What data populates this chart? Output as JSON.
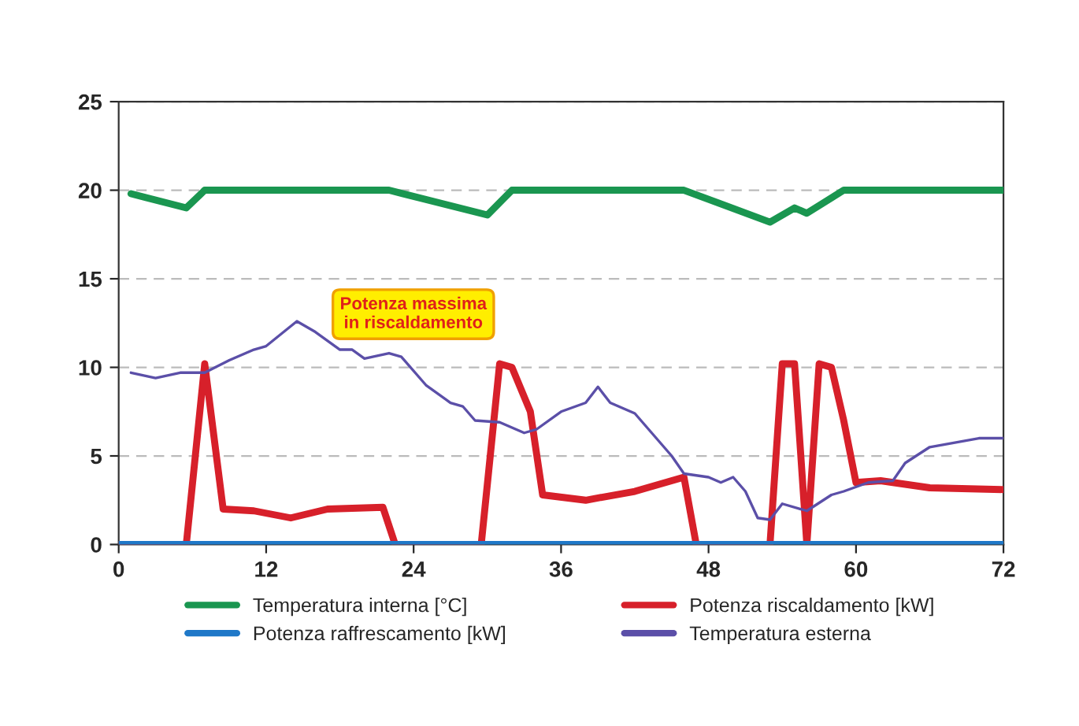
{
  "chart_data": {
    "type": "line",
    "xlim": [
      0,
      72
    ],
    "xticks": [
      0,
      12,
      24,
      36,
      48,
      60,
      72
    ],
    "ylim": [
      0,
      25
    ],
    "yticks": [
      0,
      5,
      10,
      15,
      20,
      25
    ],
    "grid": "y",
    "legend": "bottom",
    "line_style": "solid",
    "marker": "none",
    "annotations": [
      "Potenza massima\nin riscaldamento"
    ],
    "series": [
      {
        "name": "Temperatura interna [°C]",
        "color": "#1a9650",
        "x": [
          1,
          5.5,
          7,
          22,
          30,
          32,
          46,
          53,
          55,
          56,
          59,
          72
        ],
        "values": [
          19.8,
          19,
          20,
          20,
          18.6,
          20,
          20,
          18.2,
          19,
          18.7,
          20,
          20
        ]
      },
      {
        "name": "Potenza riscaldamento [kW]",
        "color": "#d7202a",
        "x": [
          0,
          5.5,
          7,
          8.5,
          11,
          14,
          17,
          21.5,
          22.5,
          29.5,
          31,
          32,
          33.5,
          34.5,
          38,
          42,
          46,
          47,
          53,
          54,
          55,
          56,
          57,
          58,
          59,
          60,
          62,
          66,
          72
        ],
        "values": [
          0,
          0,
          10.2,
          2,
          1.9,
          1.5,
          2,
          2.1,
          0,
          0,
          10.2,
          10,
          7.5,
          2.8,
          2.5,
          3,
          3.8,
          0,
          0,
          10.2,
          10.2,
          0,
          10.2,
          10,
          7,
          3.5,
          3.6,
          3.2,
          3.1
        ]
      },
      {
        "name": "Potenza raffrescamento [kW]",
        "color": "#1f78c8",
        "x": [
          0,
          72
        ],
        "values": [
          0,
          0
        ]
      },
      {
        "name": "Temperatura esterna",
        "color": "#5b4fa8",
        "x": [
          1,
          3,
          5,
          7,
          9,
          11,
          12,
          14.5,
          16,
          18,
          19,
          20,
          22,
          23,
          25,
          27,
          28,
          29,
          31,
          33,
          34,
          36,
          38,
          39,
          40,
          42,
          45,
          46,
          48,
          49,
          50,
          51,
          52,
          53,
          54,
          56,
          58,
          59,
          61,
          63,
          64,
          66,
          70,
          72
        ],
        "values": [
          9.7,
          9.4,
          9.7,
          9.7,
          10.4,
          11,
          11.2,
          12.6,
          12,
          11,
          11,
          10.5,
          10.8,
          10.6,
          9,
          8,
          7.8,
          7,
          6.9,
          6.3,
          6.5,
          7.5,
          8,
          8.9,
          8,
          7.4,
          5,
          4,
          3.8,
          3.5,
          3.8,
          3,
          1.5,
          1.4,
          2.3,
          1.9,
          2.8,
          3,
          3.5,
          3.6,
          4.6,
          5.5,
          6,
          6
        ]
      }
    ]
  }
}
